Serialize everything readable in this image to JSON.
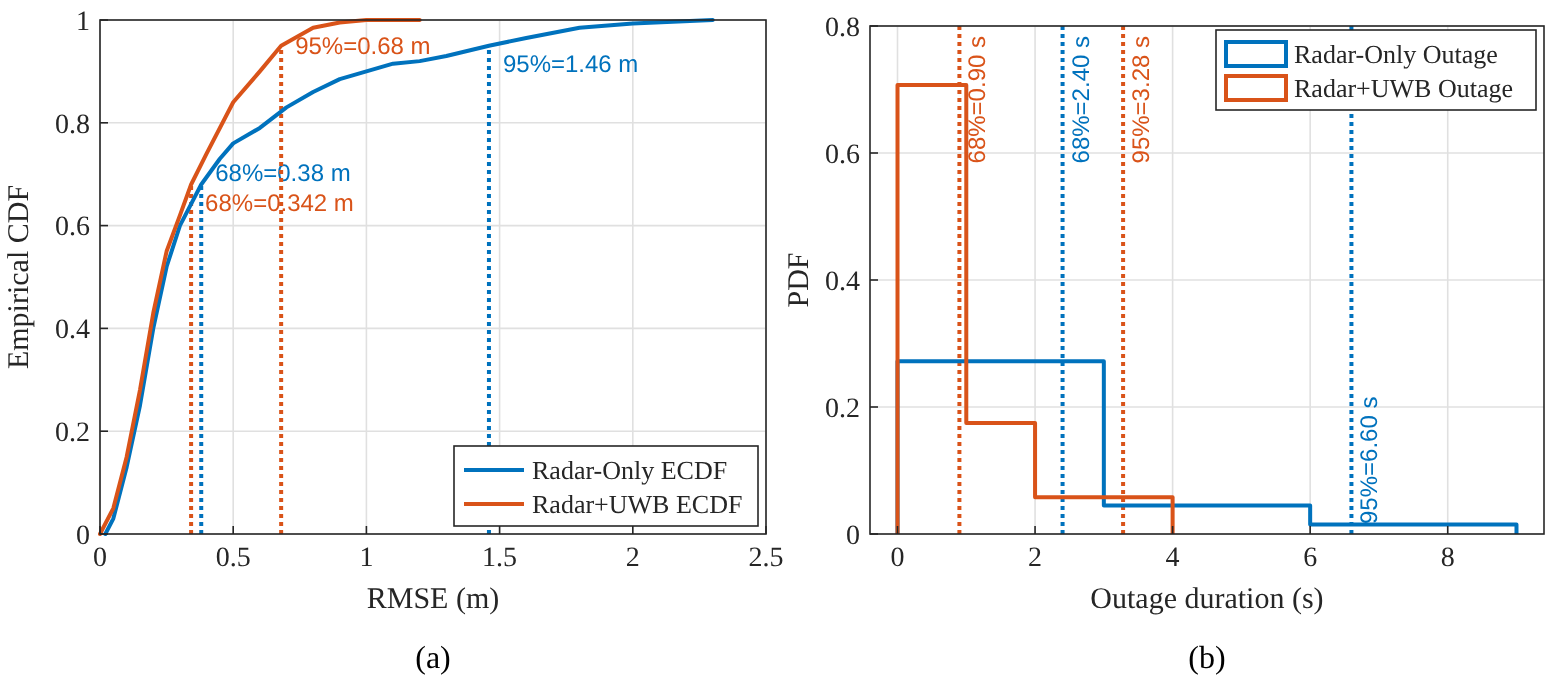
{
  "chart_data": [
    {
      "type": "line",
      "xlabel": "RMSE (m)",
      "ylabel": "Empirical CDF",
      "xlim": [
        0,
        2.5
      ],
      "xticks": [
        0,
        0.5,
        1,
        1.5,
        2,
        2.5
      ],
      "ylim": [
        0,
        1
      ],
      "yticks": [
        0,
        0.2,
        0.4,
        0.6,
        0.8,
        1
      ],
      "grid": true,
      "legend": "bottom right",
      "line_style": "solid",
      "series": [
        {
          "name": "Radar-Only ECDF",
          "color": "#0072bd",
          "x": [
            0.02,
            0.05,
            0.1,
            0.15,
            0.2,
            0.25,
            0.3,
            0.35,
            0.38,
            0.45,
            0.5,
            0.6,
            0.7,
            0.8,
            0.9,
            1.0,
            1.1,
            1.2,
            1.3,
            1.46,
            1.6,
            1.8,
            2.0,
            2.3
          ],
          "values": [
            0,
            0.03,
            0.13,
            0.25,
            0.4,
            0.52,
            0.6,
            0.65,
            0.68,
            0.73,
            0.76,
            0.79,
            0.83,
            0.86,
            0.885,
            0.9,
            0.915,
            0.92,
            0.93,
            0.95,
            0.965,
            0.985,
            0.993,
            1.0
          ]
        },
        {
          "name": "Radar+UWB ECDF",
          "color": "#d95319",
          "x": [
            0,
            0.05,
            0.1,
            0.15,
            0.2,
            0.25,
            0.3,
            0.342,
            0.4,
            0.5,
            0.6,
            0.68,
            0.8,
            0.9,
            1.0,
            1.2
          ],
          "values": [
            0,
            0.05,
            0.15,
            0.28,
            0.43,
            0.55,
            0.62,
            0.68,
            0.74,
            0.84,
            0.9,
            0.95,
            0.985,
            0.995,
            1,
            1
          ]
        }
      ],
      "ref_lines": [
        {
          "axis": "x",
          "value": 0.38,
          "label": "68%=0.38 m",
          "color": "#0072bd",
          "line_style": "dotted"
        },
        {
          "axis": "x",
          "value": 0.342,
          "label": "68%=0.342 m",
          "color": "#d95319",
          "line_style": "dotted"
        },
        {
          "axis": "x",
          "value": 0.68,
          "label": "95%=0.68 m",
          "color": "#d95319",
          "line_style": "dotted"
        },
        {
          "axis": "x",
          "value": 1.46,
          "label": "95%=1.46 m",
          "color": "#0072bd",
          "line_style": "dotted"
        }
      ],
      "annotations": [
        "(a)"
      ]
    },
    {
      "type": "step",
      "xlabel": "Outage duration (s)",
      "ylabel": "PDF",
      "xlim": [
        -0.4,
        9.4
      ],
      "xticks": [
        0,
        2,
        4,
        6,
        8
      ],
      "ylim": [
        0,
        0.8
      ],
      "yticks": [
        0,
        0.2,
        0.4,
        0.6,
        0.8
      ],
      "grid": true,
      "legend": "top right",
      "series": [
        {
          "name": "Radar-Only Outage",
          "color": "#0072bd",
          "x": [
            0,
            0,
            3,
            6,
            9,
            9
          ],
          "values": [
            0,
            0.272,
            0.045,
            0.015,
            0.015,
            0
          ]
        },
        {
          "name": "Radar+UWB Outage",
          "color": "#d95319",
          "x": [
            0,
            0,
            1,
            2,
            4,
            4
          ],
          "values": [
            0,
            0.707,
            0.175,
            0.058,
            0.058,
            0
          ]
        }
      ],
      "ref_lines": [
        {
          "axis": "x",
          "value": 0.9,
          "label": "68%=0.90 s",
          "color": "#d95319",
          "line_style": "dotted"
        },
        {
          "axis": "x",
          "value": 3.28,
          "label": "95%=3.28 s",
          "color": "#d95319",
          "line_style": "dotted"
        },
        {
          "axis": "x",
          "value": 2.4,
          "label": "68%=2.40 s",
          "color": "#0072bd",
          "line_style": "dotted"
        },
        {
          "axis": "x",
          "value": 6.6,
          "label": "95%=6.60 s",
          "color": "#0072bd",
          "line_style": "dotted"
        }
      ],
      "annotations": [
        "(b)"
      ]
    }
  ]
}
